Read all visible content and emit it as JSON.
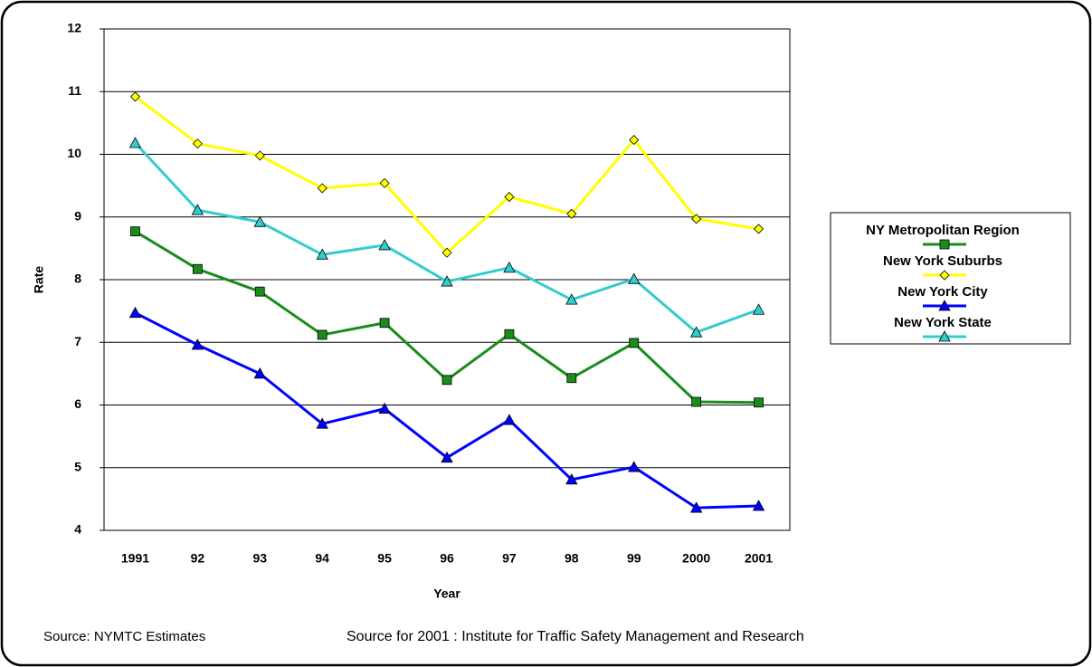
{
  "chart_data": {
    "type": "line",
    "x_label": "Year",
    "y_label": "Rate",
    "categories": [
      "1991",
      "92",
      "93",
      "94",
      "95",
      "96",
      "97",
      "98",
      "99",
      "2000",
      "2001"
    ],
    "ylim": [
      4,
      12
    ],
    "yticks": [
      4,
      5,
      6,
      7,
      8,
      9,
      10,
      11,
      12
    ],
    "grid": true,
    "legend": "right",
    "series": [
      {
        "name": "NY Metropolitan Region",
        "color": "#1a8c1a",
        "marker": "square",
        "values": [
          8.77,
          8.17,
          7.81,
          7.12,
          7.31,
          6.4,
          7.13,
          6.43,
          6.99,
          6.05,
          6.04
        ]
      },
      {
        "name": "New York Suburbs",
        "color": "#ffff00",
        "marker": "diamond",
        "values": [
          10.92,
          10.17,
          9.98,
          9.46,
          9.54,
          8.43,
          9.32,
          9.05,
          10.23,
          8.97,
          8.81
        ]
      },
      {
        "name": "New York City",
        "color": "#0000ff",
        "marker": "triangle",
        "values": [
          7.47,
          6.96,
          6.5,
          5.7,
          5.94,
          5.16,
          5.76,
          4.81,
          5.01,
          4.36,
          4.39
        ]
      },
      {
        "name": "New York State",
        "color": "#33cccc",
        "marker": "triangle",
        "values": [
          10.18,
          9.11,
          8.92,
          8.4,
          8.55,
          7.97,
          8.19,
          7.68,
          8.01,
          7.16,
          7.52
        ]
      }
    ],
    "footnotes": [
      "Source: NYMTC Estimates",
      "Source for 2001 : Institute for Traffic Safety Management and Research"
    ]
  }
}
